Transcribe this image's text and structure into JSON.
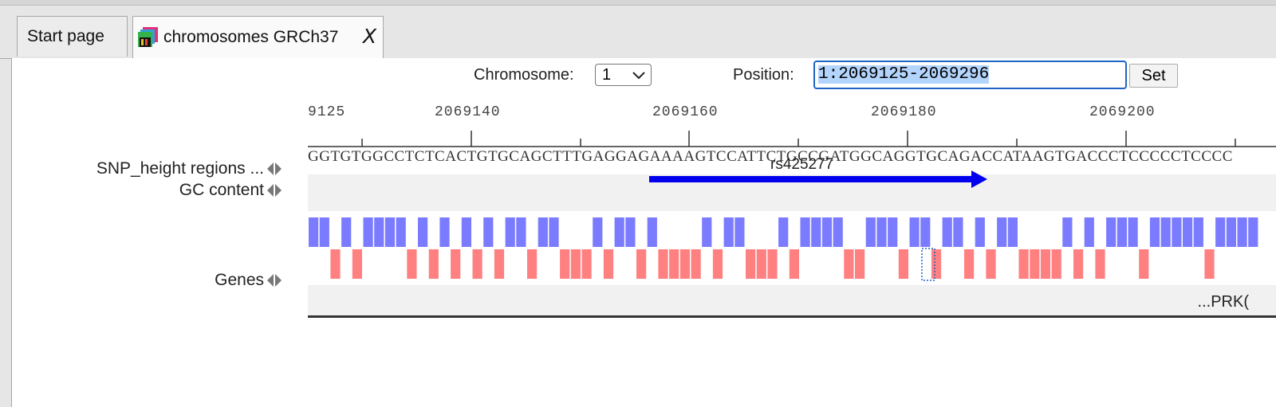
{
  "tabs": [
    {
      "label": "Start page",
      "active": false
    },
    {
      "label": "chromosomes GRCh37",
      "active": true,
      "close": "X"
    }
  ],
  "controls": {
    "chromosome_label": "Chromosome:",
    "chromosome_value": "1",
    "position_label": "Position:",
    "position_value": "1:2069125-2069296",
    "set_label": "Set"
  },
  "ruler": {
    "labels": [
      "9125",
      "2069140",
      "2069160",
      "2069180",
      "2069200"
    ]
  },
  "sequence": "GGTGTGGCCTCTCACTGTGCAGCTTTGAGGAGAAAAGTCCATTCTGCCGATGGCAGGTGCAGACCATAAGTGACCCTCCCCCTCCCC",
  "tracks": [
    {
      "label": "SNP_height regions ..."
    },
    {
      "label": "GC content"
    },
    {
      "label": "Genes"
    }
  ],
  "snp": {
    "name": "rs425277"
  },
  "gene": {
    "name": "...PRK("
  },
  "colors": {
    "gc_high": "#7b7bff",
    "gc_low": "#ff8080",
    "snp_arrow": "#0000ee",
    "focus": "#1f63c6"
  },
  "icons": {
    "tab_icon": "chromosome-browser-icon",
    "nav_arrows": "left-right-triangle-icons",
    "dropdown": "chevron-down-icon"
  }
}
